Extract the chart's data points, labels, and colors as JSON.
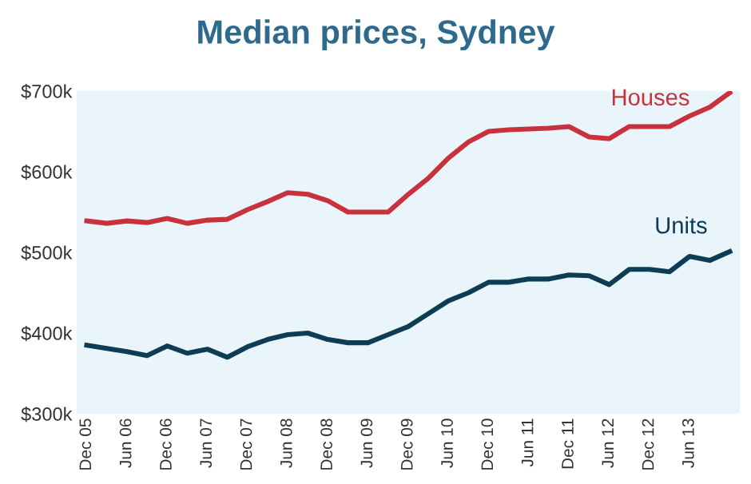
{
  "chart_data": {
    "type": "line",
    "title": "Median prices, Sydney",
    "categories": [
      "Dec 05",
      null,
      "Jun 06",
      null,
      "Dec 06",
      null,
      "Jun 07",
      null,
      "Dec 07",
      null,
      "Jun 08",
      null,
      "Dec 08",
      null,
      "Jun 09",
      null,
      "Dec 09",
      null,
      "Jun 10",
      null,
      "Dec 10",
      null,
      "Jun 11",
      null,
      "Dec 11",
      null,
      "Jun 12",
      null,
      "Dec 12",
      null,
      "Jun 13",
      null,
      null
    ],
    "series": [
      {
        "name": "Houses",
        "color": "#c8323c",
        "values": [
          539,
          536,
          539,
          537,
          542,
          536,
          540,
          541,
          553,
          563,
          574,
          572,
          564,
          550,
          550,
          550,
          572,
          592,
          617,
          637,
          650,
          652,
          653,
          654,
          656,
          643,
          641,
          656,
          656,
          656,
          669,
          680,
          698
        ]
      },
      {
        "name": "Units",
        "color": "#0d3c55",
        "values": [
          385,
          381,
          377,
          372,
          384,
          375,
          380,
          370,
          383,
          392,
          398,
          400,
          392,
          388,
          388,
          398,
          408,
          424,
          440,
          450,
          463,
          463,
          467,
          467,
          472,
          471,
          460,
          479,
          479,
          476,
          495,
          490,
          501
        ]
      }
    ],
    "ylim": [
      300,
      700
    ],
    "yticks": [
      {
        "value": 300,
        "label": "$300k"
      },
      {
        "value": 400,
        "label": "$400k"
      },
      {
        "value": 500,
        "label": "$500k"
      },
      {
        "value": 600,
        "label": "$600k"
      },
      {
        "value": 700,
        "label": "$700k"
      }
    ],
    "grid": false,
    "legend": false,
    "marker": "none",
    "line_style": "solid"
  }
}
